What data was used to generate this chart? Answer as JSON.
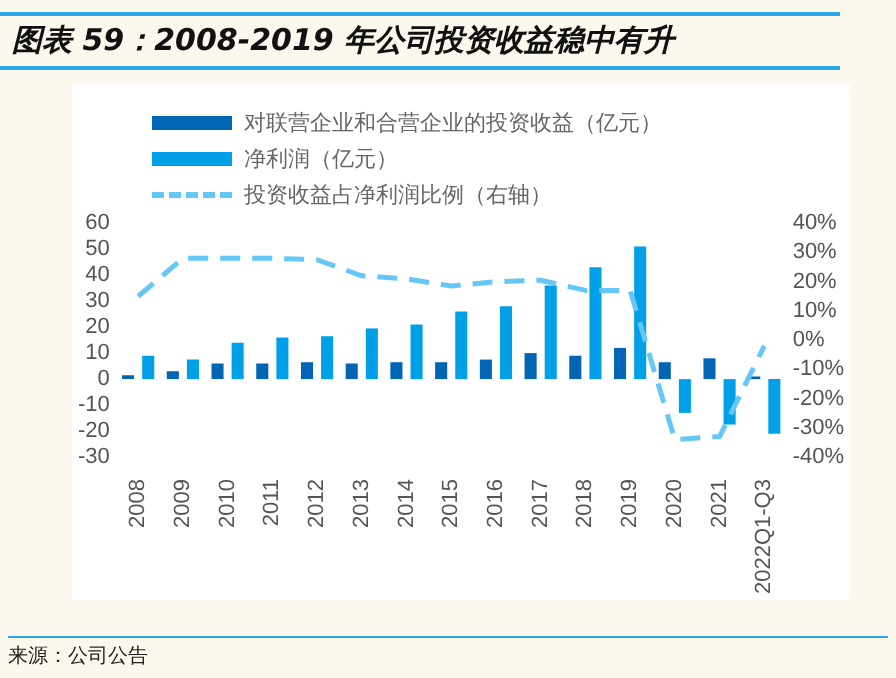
{
  "chart_data": {
    "type": "bar",
    "title": "图表 59：2008-2019 年公司投资收益稳中有升",
    "categories": [
      "2008",
      "2009",
      "2010",
      "2011",
      "2012",
      "2013",
      "2014",
      "2015",
      "2016",
      "2017",
      "2018",
      "2019",
      "2020",
      "2021",
      "2022Q1-Q3"
    ],
    "series": [
      {
        "name": "对联营企业和合营企业的投资收益（亿元）",
        "color": "#0066b3",
        "values": [
          1.5,
          3,
          6,
          6,
          6.5,
          6,
          6.5,
          6.5,
          7.5,
          10,
          9,
          12,
          6.5,
          8,
          1
        ]
      },
      {
        "name": "净利润（亿元）",
        "color": "#00a0e9",
        "values": [
          9,
          7.5,
          14,
          16,
          16.5,
          19.5,
          21,
          26,
          28,
          36,
          43,
          51,
          -13,
          -17.5,
          -21
        ]
      },
      {
        "name": "投资收益占净利润比例（右轴）",
        "type": "line",
        "axis": "y2",
        "color": "#66c6f5",
        "line_style": "dashed",
        "marker": "none",
        "values": [
          15,
          28,
          28,
          28,
          27.5,
          22,
          21,
          18.5,
          20,
          20.5,
          17,
          17,
          -34,
          -33,
          -2
        ]
      }
    ],
    "ylim": [
      -30,
      60
    ],
    "yticks": [
      -30,
      -20,
      -10,
      0,
      10,
      20,
      30,
      40,
      50,
      60
    ],
    "y2lim": [
      -40,
      40
    ],
    "y2ticks": [
      {
        "value": -40,
        "label": "-40%"
      },
      {
        "value": -30,
        "label": "-30%"
      },
      {
        "value": -20,
        "label": "-20%"
      },
      {
        "value": -10,
        "label": "-10%"
      },
      {
        "value": 0,
        "label": "0%"
      },
      {
        "value": 10,
        "label": "10%"
      },
      {
        "value": 20,
        "label": "20%"
      },
      {
        "value": 30,
        "label": "30%"
      },
      {
        "value": 40,
        "label": "40%"
      }
    ],
    "grid": false,
    "legend": "top left",
    "annotations": [
      "来源：公司公告"
    ]
  }
}
